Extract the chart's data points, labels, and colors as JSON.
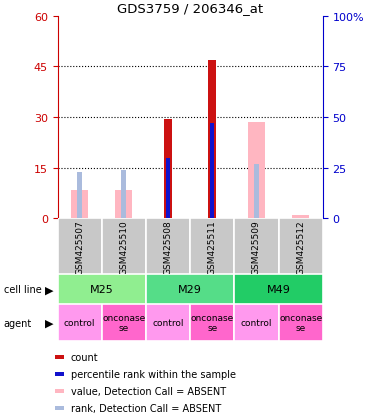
{
  "title": "GDS3759 / 206346_at",
  "samples": [
    "GSM425507",
    "GSM425510",
    "GSM425508",
    "GSM425511",
    "GSM425509",
    "GSM425512"
  ],
  "count_values": [
    0,
    0,
    29.5,
    47,
    0,
    0
  ],
  "rank_values_right": [
    0,
    0,
    30,
    47,
    0,
    0
  ],
  "absent_value_bars": [
    8.5,
    8.5,
    0,
    0,
    28.5,
    1.0
  ],
  "absent_rank_bars_right": [
    23,
    24,
    0,
    0,
    27,
    0
  ],
  "cell_line_groups": [
    {
      "label": "M25",
      "start": 0,
      "end": 2,
      "color": "#90EE90"
    },
    {
      "label": "M29",
      "start": 2,
      "end": 4,
      "color": "#55DD88"
    },
    {
      "label": "M49",
      "start": 4,
      "end": 6,
      "color": "#22CC66"
    }
  ],
  "agent_labels": [
    "control",
    "onconase\nse",
    "control",
    "onconase\nse",
    "control",
    "onconase\nse"
  ],
  "ylim_left": [
    0,
    60
  ],
  "ylim_right": [
    0,
    100
  ],
  "yticks_left": [
    0,
    15,
    30,
    45,
    60
  ],
  "yticks_right": [
    0,
    25,
    50,
    75,
    100
  ],
  "color_count": "#CC1111",
  "color_rank": "#1111CC",
  "color_absent_value": "#FFB6C1",
  "color_absent_rank": "#AABBDD",
  "left_axis_color": "#CC0000",
  "right_axis_color": "#0000CC",
  "legend_items": [
    {
      "color": "#CC1111",
      "label": "count"
    },
    {
      "color": "#1111CC",
      "label": "percentile rank within the sample"
    },
    {
      "color": "#FFB6C1",
      "label": "value, Detection Call = ABSENT"
    },
    {
      "color": "#AABBDD",
      "label": "rank, Detection Call = ABSENT"
    }
  ]
}
